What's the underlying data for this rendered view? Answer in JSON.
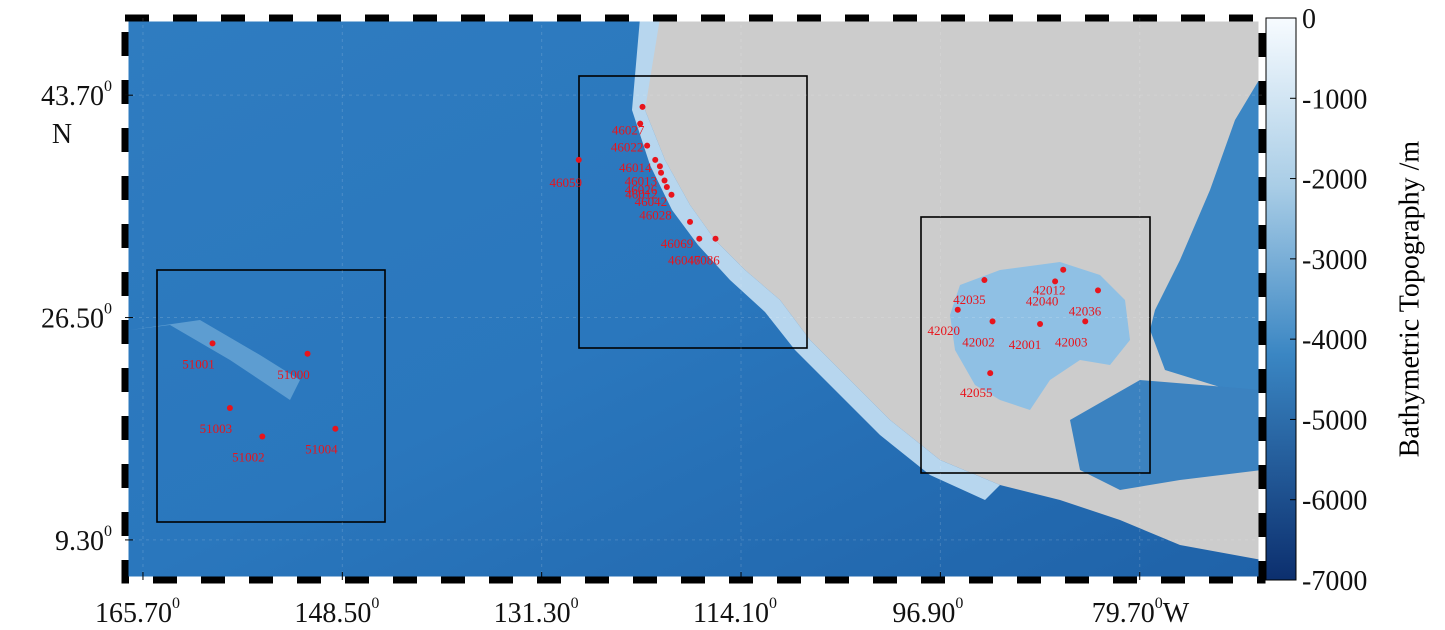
{
  "map": {
    "xlim": [
      167.25,
      69.15
    ],
    "ylim": [
      6.2,
      49.67
    ],
    "xticks": [
      {
        "value": 165.7,
        "label": "165.70"
      },
      {
        "value": 148.5,
        "label": "148.50"
      },
      {
        "value": 131.3,
        "label": "131.30"
      },
      {
        "value": 114.1,
        "label": "114.10"
      },
      {
        "value": 96.9,
        "label": "96.90"
      },
      {
        "value": 79.7,
        "label": "79.70"
      }
    ],
    "yticks": [
      {
        "value": 43.7,
        "label": "43.70"
      },
      {
        "value": 26.5,
        "label": "26.50"
      },
      {
        "value": 9.3,
        "label": "9.30"
      }
    ],
    "degree_mark": "0",
    "x_suffix": "W",
    "y_suffix": "N",
    "marker_color": "#e8141c",
    "buoys": [
      {
        "id": "51001",
        "lon": 159.7,
        "lat": 24.5
      },
      {
        "id": "51000",
        "lon": 151.5,
        "lat": 23.7
      },
      {
        "id": "51003",
        "lon": 158.2,
        "lat": 19.5
      },
      {
        "id": "51002",
        "lon": 155.4,
        "lat": 17.3
      },
      {
        "id": "51004",
        "lon": 149.1,
        "lat": 17.9
      },
      {
        "id": null,
        "lon": 122.6,
        "lat": 42.8
      },
      {
        "id": "46027",
        "lon": 122.8,
        "lat": 41.5
      },
      {
        "id": "46022",
        "lon": 122.2,
        "lat": 39.8
      },
      {
        "id": "46014",
        "lon": 121.5,
        "lat": 38.7
      },
      {
        "id": "46013",
        "lon": 121.1,
        "lat": 38.2
      },
      {
        "id": "46026",
        "lon": 121.0,
        "lat": 37.7
      },
      {
        "id": "46012",
        "lon": 120.7,
        "lat": 37.1
      },
      {
        "id": "46042",
        "lon": 120.5,
        "lat": 36.6
      },
      {
        "id": "46028",
        "lon": 120.1,
        "lat": 36.0
      },
      {
        "id": "46069",
        "lon": 118.5,
        "lat": 33.9
      },
      {
        "id": "46047",
        "lon": 117.7,
        "lat": 32.6
      },
      {
        "id": "46086",
        "lon": 116.3,
        "lat": 32.6
      },
      {
        "id": "46059",
        "lon": 128.1,
        "lat": 38.7
      },
      {
        "id": "42035",
        "lon": 93.1,
        "lat": 29.4
      },
      {
        "id": "42040",
        "lon": 87.0,
        "lat": 29.3
      },
      {
        "id": "42012",
        "lon": 86.3,
        "lat": 30.2
      },
      {
        "id": "42036",
        "lon": 83.3,
        "lat": 28.6
      },
      {
        "id": "42020",
        "lon": 95.4,
        "lat": 27.1
      },
      {
        "id": "42002",
        "lon": 92.4,
        "lat": 26.2
      },
      {
        "id": "42001",
        "lon": 88.3,
        "lat": 26.0
      },
      {
        "id": "42003",
        "lon": 84.4,
        "lat": 26.2
      },
      {
        "id": "42055",
        "lon": 92.6,
        "lat": 22.2
      }
    ]
  },
  "colorbar": {
    "label": "Bathymetric Topography /m",
    "lim": [
      -7000,
      0
    ],
    "ticks": [
      0,
      -1000,
      -2000,
      -3000,
      -4000,
      -5000,
      -6000,
      -7000
    ]
  }
}
